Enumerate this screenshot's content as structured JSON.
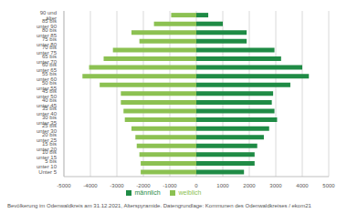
{
  "chart_data": {
    "type": "bar",
    "orientation": "horizontal",
    "stacked": true,
    "grid": true,
    "legend": "bottom",
    "subtitle": "Bevölkerung im Odenwaldkreis am 31.12.2021, Alterspyramide. Datengrundlage: Kommunen des Odenwaldkreises / ekom21",
    "categories": [
      "90 und älter",
      "85 bis unter 90",
      "80 bis unter 85",
      "75 bis unter 80",
      "70 bis unter 75",
      "65 bis unter 70",
      "60 bis unter 65",
      "55 bis unter 60",
      "50 bis unter 55",
      "45 bis unter 50",
      "40 bis unter 45",
      "35 bis unter 40",
      "30 bis unter 35",
      "25 bis unter 30",
      "20 bis unter 25",
      "15 bis unter 20",
      "10 bis unter 15",
      "5 bis unter 10",
      "Unter 5"
    ],
    "series": [
      {
        "name": "weiblich",
        "color": "#8cc152",
        "values": [
          -950,
          -1600,
          -2450,
          -2150,
          -3150,
          -3500,
          -4050,
          -4300,
          -3650,
          -2850,
          -2850,
          -2750,
          -2700,
          -2450,
          -2300,
          -2250,
          -2150,
          -2100,
          -2100
        ]
      },
      {
        "name": "männlich",
        "color": "#1f8b45",
        "values": [
          450,
          1000,
          1900,
          1900,
          2950,
          3200,
          4000,
          4250,
          3550,
          2900,
          2850,
          2950,
          3050,
          2750,
          2550,
          2300,
          2200,
          2200,
          1800
        ]
      }
    ],
    "xlim": [
      -5000,
      5000
    ],
    "xticks": [
      -5000,
      -4000,
      -3000,
      -2000,
      -1000,
      0,
      1000,
      2000,
      3000,
      4000,
      5000
    ]
  }
}
